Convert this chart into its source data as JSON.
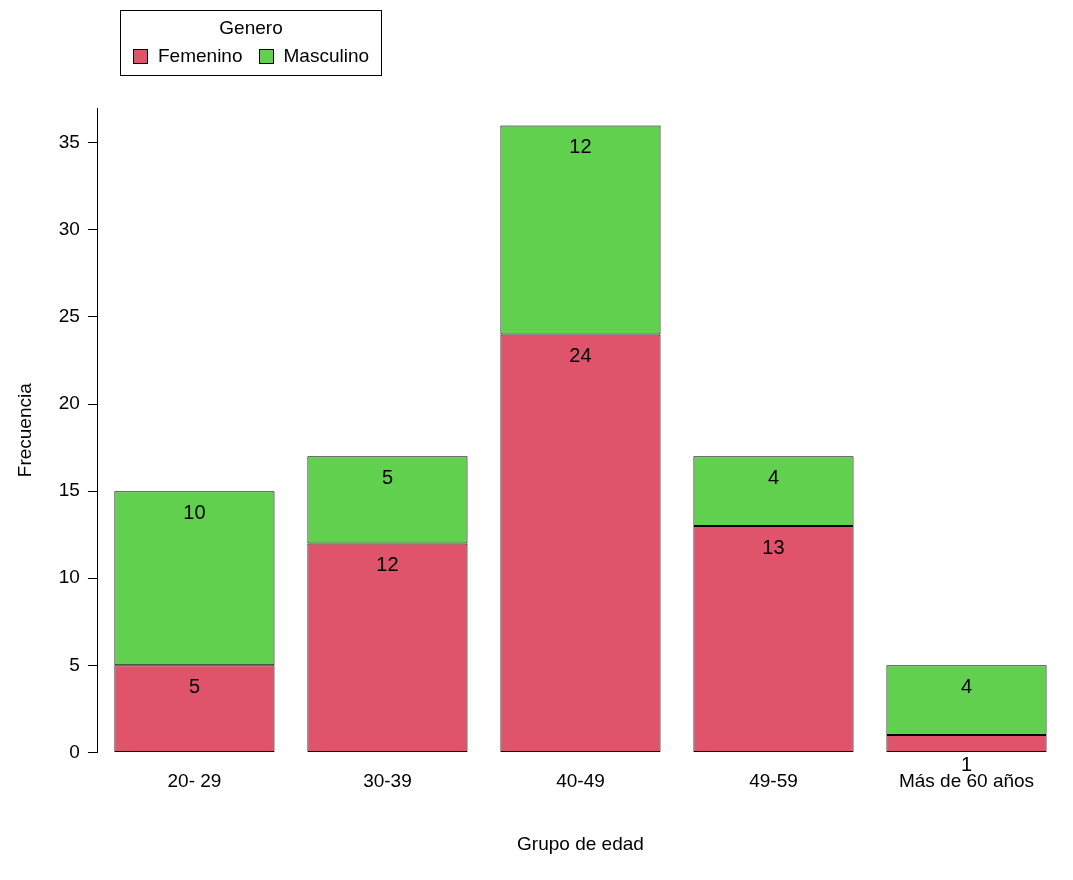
{
  "chart_data": {
    "type": "bar",
    "stacked": true,
    "xlabel": "Grupo de edad",
    "ylabel": "Frecuencia",
    "legend_title": "Genero",
    "legend": "top left",
    "categories": [
      "20- 29",
      "30-39",
      "40-49",
      "49-59",
      "Más de 60 años"
    ],
    "series": [
      {
        "name": "Femenino",
        "color": "#df536b",
        "values": [
          5,
          12,
          24,
          13,
          1
        ]
      },
      {
        "name": "Masculino",
        "color": "#61d04f",
        "values": [
          10,
          5,
          12,
          4,
          4
        ]
      }
    ],
    "ylim": [
      0,
      37
    ],
    "yticks": [
      0,
      5,
      10,
      15,
      20,
      25,
      30,
      35
    ],
    "grid": false,
    "data_labels": true
  }
}
